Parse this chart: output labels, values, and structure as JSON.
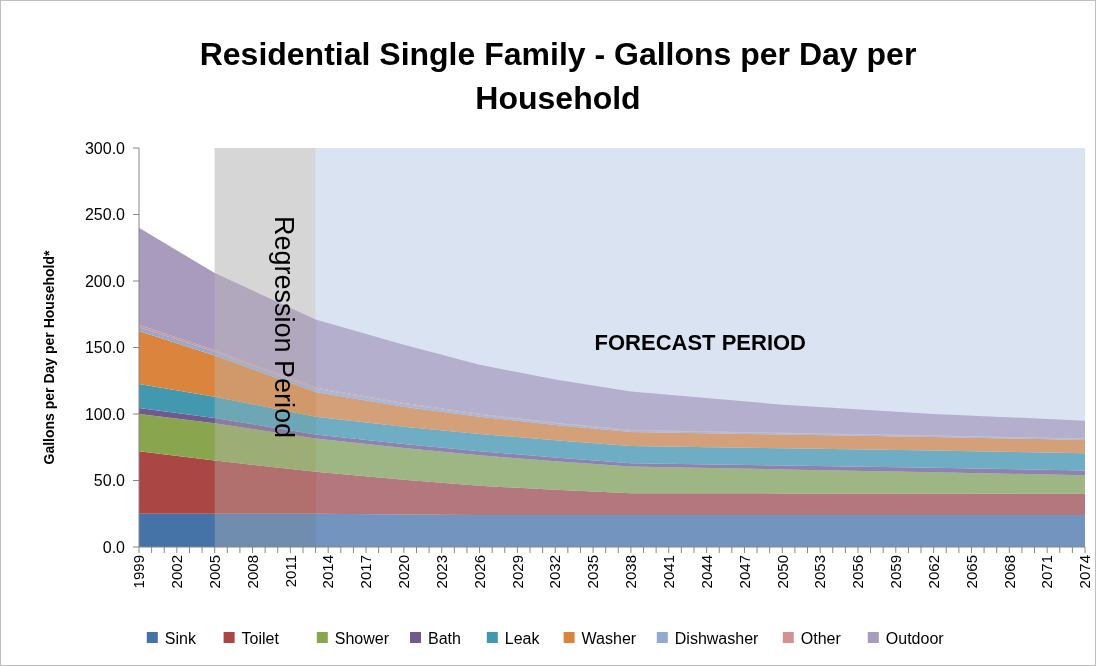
{
  "chart_data": {
    "type": "area",
    "stacked": true,
    "title": "Residential Single Family - Gallons per Day per Household",
    "ylabel": "Gallons per Day per Household*",
    "x": [
      1999,
      2005,
      2013,
      2020,
      2026,
      2032,
      2038,
      2050,
      2062,
      2074
    ],
    "xlim": [
      1999,
      2074
    ],
    "xticks": [
      1999,
      2002,
      2005,
      2008,
      2011,
      2014,
      2017,
      2020,
      2023,
      2026,
      2029,
      2032,
      2035,
      2038,
      2041,
      2044,
      2047,
      2050,
      2053,
      2056,
      2059,
      2062,
      2065,
      2068,
      2071,
      2074
    ],
    "ylim": [
      0,
      300
    ],
    "yticks": [
      {
        "value": 0,
        "label": "0.0"
      },
      {
        "value": 50,
        "label": "50.0"
      },
      {
        "value": 100,
        "label": "100.0"
      },
      {
        "value": 150,
        "label": "150.0"
      },
      {
        "value": 200,
        "label": "200.0"
      },
      {
        "value": 250,
        "label": "250.0"
      },
      {
        "value": 300,
        "label": "300.0"
      }
    ],
    "legend": "bottom",
    "series": [
      {
        "name": "Sink",
        "color": "#4572a7",
        "values": [
          25,
          25,
          25,
          24.5,
          24,
          24,
          24,
          24,
          24,
          24
        ]
      },
      {
        "name": "Toilet",
        "color": "#aa4643",
        "values": [
          47,
          40,
          31.5,
          26,
          22,
          19,
          16.5,
          16.3,
          16.2,
          16
        ]
      },
      {
        "name": "Shower",
        "color": "#89a54e",
        "values": [
          28,
          28,
          25,
          24,
          23,
          21.5,
          20,
          18,
          16,
          14
        ]
      },
      {
        "name": "Bath",
        "color": "#71588f",
        "values": [
          4.5,
          4,
          3,
          3,
          3,
          2.8,
          2.5,
          3,
          3.3,
          3.5
        ]
      },
      {
        "name": "Leak",
        "color": "#4198af",
        "values": [
          18,
          16,
          13.5,
          13,
          13,
          13,
          13,
          13,
          13,
          13
        ]
      },
      {
        "name": "Washer",
        "color": "#db843d",
        "values": [
          40,
          31,
          18.5,
          15,
          13,
          11.5,
          10.5,
          10.3,
          10.2,
          10
        ]
      },
      {
        "name": "Dishwasher",
        "color": "#93a9cf",
        "values": [
          3,
          2.8,
          2.5,
          2,
          1.5,
          1.2,
          1,
          0.9,
          0.8,
          0.7
        ]
      },
      {
        "name": "Other",
        "color": "#d19392",
        "values": [
          1.5,
          1.2,
          1,
          0.8,
          0.6,
          0.5,
          0.5,
          0.4,
          0.3,
          0.3
        ]
      },
      {
        "name": "Outdoor",
        "color": "#a99bbd",
        "values": [
          73,
          58,
          51,
          43.7,
          36.9,
          32.5,
          29,
          21.1,
          16.2,
          13.5
        ]
      }
    ],
    "bands": [
      {
        "axis": "x",
        "from": 2005,
        "to": 2013,
        "label": "Regression Period",
        "color": "#bfbfbf"
      },
      {
        "axis": "x",
        "from": 2013,
        "to": 2074,
        "label": "FORECAST PERIOD",
        "color": "#c6d5ec"
      }
    ]
  }
}
